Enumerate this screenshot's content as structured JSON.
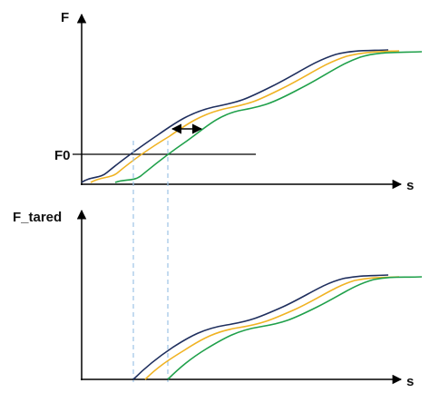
{
  "top_plot": {
    "y_label": "F",
    "x_label": "s",
    "threshold_label": "F0"
  },
  "bottom_plot": {
    "y_label": "F_tared",
    "x_label": "s"
  }
}
